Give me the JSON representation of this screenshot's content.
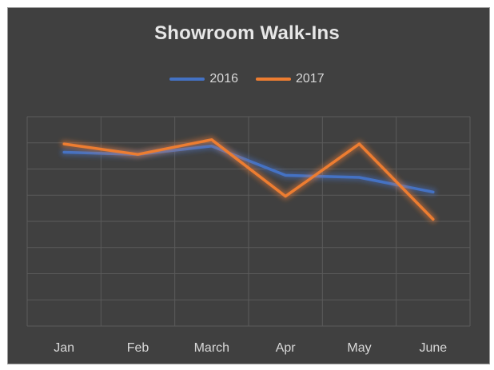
{
  "chart_data": {
    "type": "line",
    "title": "Showroom Walk-Ins",
    "xlabel": "",
    "ylabel": "",
    "categories": [
      "Jan",
      "Feb",
      "March",
      "Apr",
      "May",
      "June"
    ],
    "series": [
      {
        "name": "2016",
        "color": "#4472c4",
        "values": [
          83,
          82,
          86,
          72,
          71,
          64
        ]
      },
      {
        "name": "2017",
        "color": "#ed7d31",
        "values": [
          87,
          82,
          89,
          62,
          87,
          51
        ]
      }
    ],
    "ylim": [
      0,
      100
    ],
    "y_tick_labels_shown": false,
    "grid": true,
    "legend_position": "top",
    "background_color": "#404040"
  }
}
